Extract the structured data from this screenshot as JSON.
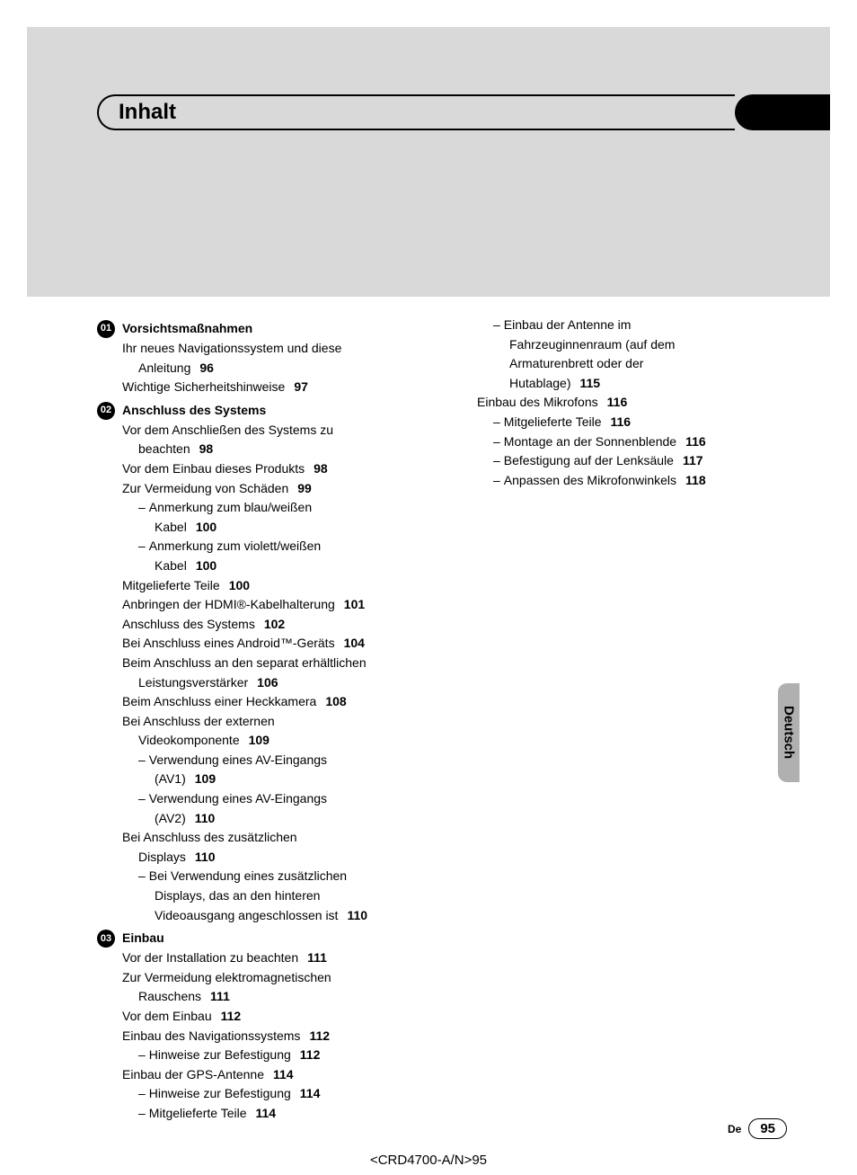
{
  "colors": {
    "gray_block": "#d9d9d9",
    "lang_tab": "#b0b0b0",
    "text": "#000000",
    "bg": "#ffffff"
  },
  "title": "Inhalt",
  "lang_label": "Deutsch",
  "footer": {
    "lang": "De",
    "page": "95"
  },
  "doc_code": "<CRD4700-A/N>95",
  "sections": [
    {
      "num": "01",
      "title": "Vorsichtsmaßnahmen",
      "entries": [
        {
          "t": "Ihr neues Navigationssystem und diese"
        },
        {
          "t": "Anleitung",
          "p": "96",
          "cls": "cont"
        },
        {
          "t": "Wichtige Sicherheitshinweise",
          "p": "97"
        }
      ]
    },
    {
      "num": "02",
      "title": "Anschluss des Systems",
      "entries": [
        {
          "t": "Vor dem Anschließen des Systems zu"
        },
        {
          "t": "beachten",
          "p": "98",
          "cls": "cont"
        },
        {
          "t": "Vor dem Einbau dieses Produkts",
          "p": "98"
        },
        {
          "t": "Zur Vermeidung von Schäden",
          "p": "99"
        },
        {
          "t": "Anmerkung zum blau/weißen",
          "cls": "sub",
          "dash": true
        },
        {
          "t": "Kabel",
          "p": "100",
          "cls": "sub-cont"
        },
        {
          "t": "Anmerkung zum violett/weißen",
          "cls": "sub",
          "dash": true
        },
        {
          "t": "Kabel",
          "p": "100",
          "cls": "sub-cont"
        },
        {
          "t": "Mitgelieferte Teile",
          "p": "100"
        },
        {
          "t": "Anbringen der HDMI®-Kabelhalterung",
          "p": "101"
        },
        {
          "t": "Anschluss des Systems",
          "p": "102"
        },
        {
          "t": "Bei Anschluss eines Android™-Geräts",
          "p": "104"
        },
        {
          "t": "Beim Anschluss an den separat erhältlichen"
        },
        {
          "t": "Leistungsverstärker",
          "p": "106",
          "cls": "cont"
        },
        {
          "t": "Beim Anschluss einer Heckkamera",
          "p": "108"
        },
        {
          "t": "Bei Anschluss der externen"
        },
        {
          "t": "Videokomponente",
          "p": "109",
          "cls": "cont"
        },
        {
          "t": "Verwendung eines AV-Eingangs",
          "cls": "sub",
          "dash": true
        },
        {
          "t": "(AV1)",
          "p": "109",
          "cls": "sub-cont"
        },
        {
          "t": "Verwendung eines AV-Eingangs",
          "cls": "sub",
          "dash": true
        },
        {
          "t": "(AV2)",
          "p": "110",
          "cls": "sub-cont"
        },
        {
          "t": "Bei Anschluss des zusätzlichen"
        },
        {
          "t": "Displays",
          "p": "110",
          "cls": "cont"
        },
        {
          "t": "Bei Verwendung eines zusätzlichen",
          "cls": "sub",
          "dash": true
        },
        {
          "t": "Displays, das an den hinteren",
          "cls": "sub-cont"
        },
        {
          "t": "Videoausgang angeschlossen ist",
          "p": "110",
          "cls": "sub-cont"
        }
      ]
    },
    {
      "num": "03",
      "title": "Einbau",
      "entries": [
        {
          "t": "Vor der Installation zu beachten",
          "p": "111"
        },
        {
          "t": "Zur Vermeidung elektromagnetischen"
        },
        {
          "t": "Rauschens",
          "p": "111",
          "cls": "cont"
        },
        {
          "t": "Vor dem Einbau",
          "p": "112"
        },
        {
          "t": "Einbau des Navigationssystems",
          "p": "112"
        },
        {
          "t": "Hinweise zur Befestigung",
          "p": "112",
          "cls": "sub",
          "dash": true
        },
        {
          "t": "Einbau der GPS-Antenne",
          "p": "114"
        },
        {
          "t": "Hinweise zur Befestigung",
          "p": "114",
          "cls": "sub",
          "dash": true
        },
        {
          "t": "Mitgelieferte Teile",
          "p": "114",
          "cls": "sub",
          "dash": true
        }
      ]
    }
  ],
  "col2_entries": [
    {
      "t": "Einbau der Antenne im",
      "cls": "sub",
      "dash": true
    },
    {
      "t": "Fahrzeuginnenraum (auf dem",
      "cls": "sub-cont"
    },
    {
      "t": "Armaturenbrett oder der",
      "cls": "sub-cont"
    },
    {
      "t": "Hutablage)",
      "p": "115",
      "cls": "sub-cont"
    },
    {
      "t": "Einbau des Mikrofons",
      "p": "116"
    },
    {
      "t": "Mitgelieferte Teile",
      "p": "116",
      "cls": "sub",
      "dash": true
    },
    {
      "t": "Montage an der Sonnenblende",
      "p": "116",
      "cls": "sub",
      "dash": true
    },
    {
      "t": "Befestigung auf der Lenksäule",
      "p": "117",
      "cls": "sub",
      "dash": true
    },
    {
      "t": "Anpassen des Mikrofonwinkels",
      "p": "118",
      "cls": "sub",
      "dash": true
    }
  ]
}
